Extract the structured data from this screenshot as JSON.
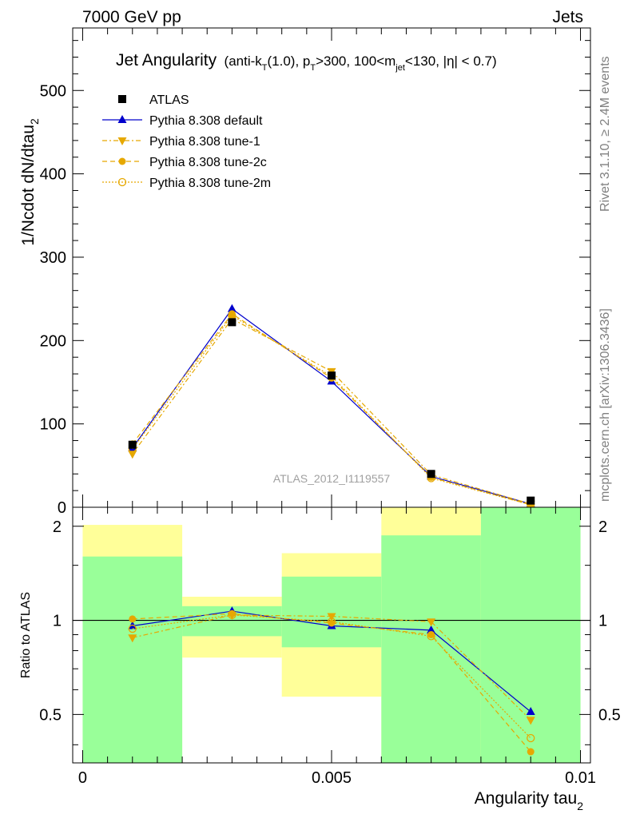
{
  "header": {
    "left": "7000 GeV pp",
    "right": "Jets",
    "side_top": "Rivet 3.1.10, ≥ 2.4M events",
    "side_bottom": "mcplots.cern.ch [arXiv:1306.3436]",
    "watermark": "ATLAS_2012_I1119557"
  },
  "title": {
    "main": "Jet Angularity",
    "p1": "(anti-k",
    "s1": "T",
    "p2": "(1.0), p",
    "s2": "T",
    "p3": ">300, 100<m",
    "s3": "jet",
    "p4": "<130, |η| < 0.7)"
  },
  "colors": {
    "data": "#000000",
    "default": "#0000cc",
    "tune": "#e6a800",
    "green_band": "#99ff99",
    "yellow_band": "#ffff99"
  },
  "chart_data": [
    {
      "type": "line",
      "ylabel_main": "1/Ncdot dN/dtau",
      "ylabel_sub": "2",
      "x": [
        0.001,
        0.003,
        0.005,
        0.007,
        0.009
      ],
      "xlim": [
        -0.0002,
        0.0102
      ],
      "ylim": [
        0,
        575
      ],
      "yticks": [
        0,
        100,
        200,
        300,
        400,
        500
      ],
      "series": [
        {
          "name": "ATLAS",
          "values": [
            75,
            222,
            158,
            40,
            8
          ]
        },
        {
          "name": "Pythia 8.308 default",
          "values": [
            71,
            238,
            151,
            37,
            4
          ]
        },
        {
          "name": "Pythia 8.308 tune-1",
          "values": [
            64,
            226,
            163,
            39,
            4
          ]
        },
        {
          "name": "Pythia 8.308 tune-2c",
          "values": [
            76,
            232,
            155,
            36,
            3
          ]
        },
        {
          "name": "Pythia 8.308 tune-2m",
          "values": [
            70,
            230,
            157,
            35,
            3
          ]
        }
      ]
    },
    {
      "type": "line",
      "ylabel": "Ratio to ATLAS",
      "xlabel_main": "Angularity tau",
      "xlabel_sub": "2",
      "x": [
        0.001,
        0.003,
        0.005,
        0.007,
        0.009
      ],
      "xlim": [
        -0.0002,
        0.0102
      ],
      "ylim": [
        0.35,
        2.3
      ],
      "yscale": "log",
      "yticks": [
        0.5,
        1,
        2
      ],
      "ytick_labels": [
        "0.5",
        "1",
        "2"
      ],
      "xticks": [
        0,
        0.005,
        0.01
      ],
      "xtick_labels": [
        "0",
        "0.005",
        "0.01"
      ],
      "reference_line": 1,
      "bins": [
        {
          "lo": 0.0,
          "hi": 0.002,
          "green": [
            0.35,
            1.6
          ],
          "yellow": [
            0.35,
            2.02
          ]
        },
        {
          "lo": 0.002,
          "hi": 0.004,
          "green": [
            0.89,
            1.11
          ],
          "yellow": [
            0.76,
            1.19
          ]
        },
        {
          "lo": 0.004,
          "hi": 0.006,
          "green": [
            0.82,
            1.38
          ],
          "yellow": [
            0.57,
            1.64
          ]
        },
        {
          "lo": 0.006,
          "hi": 0.008,
          "green": [
            0.35,
            2.3
          ],
          "yellow": [
            0.35,
            2.3
          ]
        },
        {
          "lo": 0.008,
          "hi": 0.01,
          "green": [
            0.35,
            2.3
          ],
          "yellow": [
            0.35,
            2.3
          ]
        }
      ],
      "yellow_top_override": [
        null,
        null,
        null,
        1.87,
        null
      ],
      "series": [
        {
          "name": "Pythia 8.308 default",
          "values": [
            0.96,
            1.07,
            0.96,
            0.93,
            0.51
          ]
        },
        {
          "name": "Pythia 8.308 tune-1",
          "values": [
            0.88,
            1.04,
            1.03,
            0.99,
            0.48
          ]
        },
        {
          "name": "Pythia 8.308 tune-2c",
          "values": [
            1.01,
            1.05,
            0.98,
            0.9,
            0.38
          ]
        },
        {
          "name": "Pythia 8.308 tune-2m",
          "values": [
            0.94,
            1.04,
            0.99,
            0.89,
            0.42
          ]
        }
      ]
    }
  ],
  "legend": [
    {
      "label": "ATLAS",
      "marker": "square-filled"
    },
    {
      "label": "Pythia 8.308 default",
      "marker": "triangle-up-filled"
    },
    {
      "label": "Pythia 8.308 tune-1",
      "marker": "triangle-down-filled"
    },
    {
      "label": "Pythia 8.308 tune-2c",
      "marker": "circle-filled"
    },
    {
      "label": "Pythia 8.308 tune-2m",
      "marker": "circle-open"
    }
  ]
}
